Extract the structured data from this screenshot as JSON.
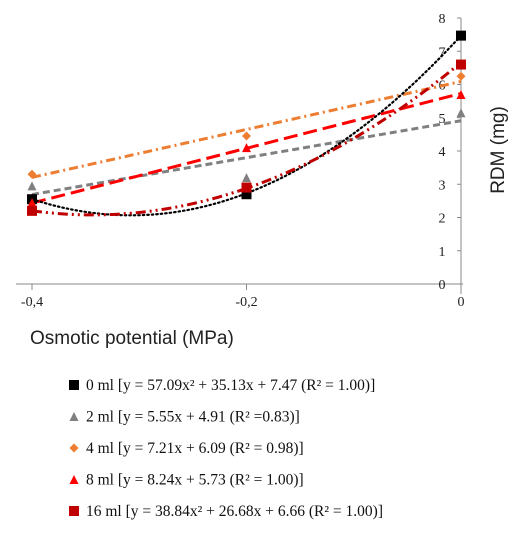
{
  "chart_data": {
    "type": "scatter",
    "xlabel": "Osmotic potential   (MPa)",
    "ylabel": "RDM (mg)",
    "xlim": [
      -0.4,
      0
    ],
    "ylim": [
      0,
      8
    ],
    "x_ticks": [
      "-0,4",
      "-0,2",
      "0"
    ],
    "y_ticks": [
      "0",
      "1",
      "2",
      "3",
      "4",
      "5",
      "6",
      "7",
      "8"
    ],
    "x": [
      -0.4,
      -0.2,
      0
    ],
    "grid": false,
    "legend_position": "bottom",
    "series": [
      {
        "name": "0 ml [y = 57.09x² + 35.13x + 7.47 (R² = 1.00)]",
        "values": [
          2.55,
          2.7,
          7.47
        ],
        "color": "#000000",
        "marker": "square",
        "trend": "poly2",
        "coef": [
          57.09,
          35.13,
          7.47
        ],
        "dash": "dotted"
      },
      {
        "name": "2 ml [y = 5.55x + 4.91 (R² =0.83)]",
        "values": [
          2.95,
          3.2,
          5.15
        ],
        "color": "#808080",
        "marker": "triangle",
        "trend": "linear",
        "coef": [
          5.55,
          4.91
        ],
        "dash": "dashed"
      },
      {
        "name": "4 ml [y = 7.21x + 6.09 (R² = 0.98)]",
        "values": [
          3.3,
          4.45,
          6.25
        ],
        "color": "#ed7d31",
        "marker": "diamond",
        "trend": "linear",
        "coef": [
          7.21,
          6.09
        ],
        "dash": "dashdot"
      },
      {
        "name": "8 ml [y = 8.24x + 5.73 (R² = 1.00)]",
        "values": [
          2.45,
          4.1,
          5.7
        ],
        "color": "#ff0000",
        "marker": "triangle",
        "trend": "linear",
        "coef": [
          8.24,
          5.73
        ],
        "dash": "longdash"
      },
      {
        "name": "16 ml [y = 38.84x² + 26.68x + 6.66 (R² = 1.00)]",
        "values": [
          2.2,
          2.9,
          6.6
        ],
        "color": "#c00000",
        "marker": "square",
        "trend": "poly2",
        "coef": [
          38.84,
          26.68,
          6.66
        ],
        "dash": "dashdotdot"
      }
    ]
  }
}
